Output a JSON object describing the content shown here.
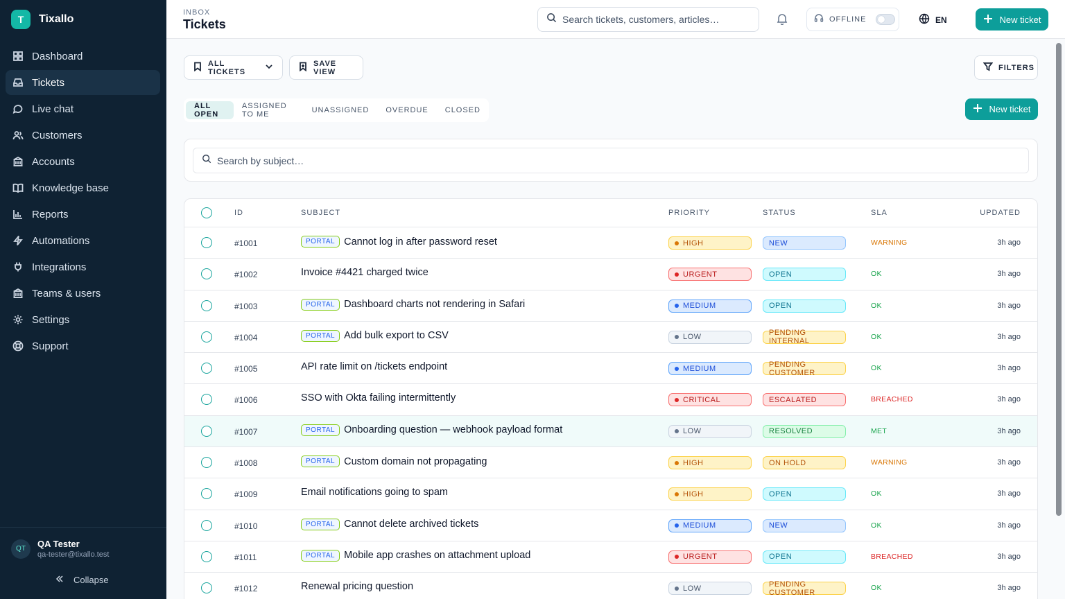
{
  "brand": {
    "logo_letter": "T",
    "name": "Tixallo"
  },
  "sidebar": {
    "items": [
      {
        "label": "Dashboard",
        "icon": "grid-icon",
        "active": false
      },
      {
        "label": "Tickets",
        "icon": "inbox-icon",
        "active": true
      },
      {
        "label": "Live chat",
        "icon": "chat-icon",
        "active": false
      },
      {
        "label": "Customers",
        "icon": "users-icon",
        "active": false
      },
      {
        "label": "Accounts",
        "icon": "building-icon",
        "active": false
      },
      {
        "label": "Knowledge base",
        "icon": "book-icon",
        "active": false
      },
      {
        "label": "Reports",
        "icon": "bar-chart-icon",
        "active": false
      },
      {
        "label": "Automations",
        "icon": "lightning-icon",
        "active": false
      },
      {
        "label": "Integrations",
        "icon": "plug-icon",
        "active": false
      },
      {
        "label": "Teams & users",
        "icon": "building-icon",
        "active": false
      },
      {
        "label": "Settings",
        "icon": "gear-icon",
        "active": false
      },
      {
        "label": "Support",
        "icon": "lifebuoy-icon",
        "active": false
      }
    ],
    "user": {
      "initials": "QT",
      "name": "QA Tester",
      "email": "qa-tester@tixallo.test"
    },
    "collapse_label": "Collapse"
  },
  "header": {
    "crumb": "INBOX",
    "title": "Tickets",
    "search_placeholder": "Search tickets, customers, articles…",
    "offline_label": "OFFLINE",
    "lang": "EN",
    "new_ticket_label": "New ticket"
  },
  "toolbar": {
    "view_label": "ALL TICKETS",
    "save_view_label": "SAVE VIEW",
    "filters_label": "FILTERS",
    "new_ticket_label": "New ticket"
  },
  "tabs": [
    {
      "label": "ALL OPEN",
      "active": true
    },
    {
      "label": "ASSIGNED TO ME",
      "active": false
    },
    {
      "label": "UNASSIGNED",
      "active": false
    },
    {
      "label": "OVERDUE",
      "active": false
    },
    {
      "label": "CLOSED",
      "active": false
    }
  ],
  "subject_search_placeholder": "Search by subject…",
  "table": {
    "columns": {
      "id": "ID",
      "subject": "SUBJECT",
      "priority": "PRIORITY",
      "status": "STATUS",
      "sla": "SLA",
      "updated": "UPDATED"
    },
    "portal_label": "PORTAL",
    "rows": [
      {
        "id": "#1001",
        "portal": true,
        "subject": "Cannot log in after password reset",
        "priority": "HIGH",
        "status": "NEW",
        "sla": "WARNING",
        "updated": "3h ago"
      },
      {
        "id": "#1002",
        "portal": false,
        "subject": "Invoice #4421 charged twice",
        "priority": "URGENT",
        "status": "OPEN",
        "sla": "OK",
        "updated": "3h ago"
      },
      {
        "id": "#1003",
        "portal": true,
        "subject": "Dashboard charts not rendering in Safari",
        "priority": "MEDIUM",
        "status": "OPEN",
        "sla": "OK",
        "updated": "3h ago"
      },
      {
        "id": "#1004",
        "portal": true,
        "subject": "Add bulk export to CSV",
        "priority": "LOW",
        "status": "PENDING INTERNAL",
        "sla": "OK",
        "updated": "3h ago"
      },
      {
        "id": "#1005",
        "portal": false,
        "subject": "API rate limit on /tickets endpoint",
        "priority": "MEDIUM",
        "status": "PENDING CUSTOMER",
        "sla": "OK",
        "updated": "3h ago"
      },
      {
        "id": "#1006",
        "portal": false,
        "subject": "SSO with Okta failing intermittently",
        "priority": "CRITICAL",
        "status": "ESCALATED",
        "sla": "BREACHED",
        "updated": "3h ago"
      },
      {
        "id": "#1007",
        "portal": true,
        "subject": "Onboarding question — webhook payload format",
        "priority": "LOW",
        "status": "RESOLVED",
        "sla": "MET",
        "updated": "3h ago",
        "highlight": true
      },
      {
        "id": "#1008",
        "portal": true,
        "subject": "Custom domain not propagating",
        "priority": "HIGH",
        "status": "ON HOLD",
        "sla": "WARNING",
        "updated": "3h ago"
      },
      {
        "id": "#1009",
        "portal": false,
        "subject": "Email notifications going to spam",
        "priority": "HIGH",
        "status": "OPEN",
        "sla": "OK",
        "updated": "3h ago"
      },
      {
        "id": "#1010",
        "portal": true,
        "subject": "Cannot delete archived tickets",
        "priority": "MEDIUM",
        "status": "NEW",
        "sla": "OK",
        "updated": "3h ago"
      },
      {
        "id": "#1011",
        "portal": true,
        "subject": "Mobile app crashes on attachment upload",
        "priority": "URGENT",
        "status": "OPEN",
        "sla": "BREACHED",
        "updated": "3h ago"
      },
      {
        "id": "#1012",
        "portal": false,
        "subject": "Renewal pricing question",
        "priority": "LOW",
        "status": "PENDING CUSTOMER",
        "sla": "OK",
        "updated": "3h ago"
      }
    ]
  },
  "colors": {
    "accent": "#0d9e9a",
    "sidebar_bg": "#0f2233",
    "priority": {
      "HIGH": {
        "bg": "#fef3c7",
        "border": "#fcd34d",
        "text": "#b45309",
        "dot": "#d97706"
      },
      "URGENT": {
        "bg": "#fee2e2",
        "border": "#f87171",
        "text": "#b91c1c",
        "dot": "#dc2626"
      },
      "CRITICAL": {
        "bg": "#fee2e2",
        "border": "#f87171",
        "text": "#b91c1c",
        "dot": "#dc2626"
      },
      "MEDIUM": {
        "bg": "#dbeafe",
        "border": "#60a5fa",
        "text": "#1d4ed8",
        "dot": "#2563eb"
      },
      "LOW": {
        "bg": "#f1f5f9",
        "border": "#cbd5e1",
        "text": "#475569",
        "dot": "#64748b"
      }
    },
    "status": {
      "NEW": {
        "bg": "#dbeafe",
        "border": "#93c5fd",
        "text": "#1d4ed8"
      },
      "OPEN": {
        "bg": "#cffafe",
        "border": "#67e8f9",
        "text": "#0e7490"
      },
      "PENDING INTERNAL": {
        "bg": "#fef3c7",
        "border": "#fcd34d",
        "text": "#b45309"
      },
      "PENDING CUSTOMER": {
        "bg": "#fef3c7",
        "border": "#fcd34d",
        "text": "#b45309"
      },
      "ESCALATED": {
        "bg": "#fee2e2",
        "border": "#f87171",
        "text": "#b91c1c"
      },
      "RESOLVED": {
        "bg": "#dcfce7",
        "border": "#86efac",
        "text": "#15803d"
      },
      "ON HOLD": {
        "bg": "#fef3c7",
        "border": "#fcd34d",
        "text": "#b45309"
      }
    },
    "sla": {
      "WARNING": "#d97706",
      "OK": "#16a34a",
      "BREACHED": "#dc2626",
      "MET": "#16a34a"
    }
  }
}
